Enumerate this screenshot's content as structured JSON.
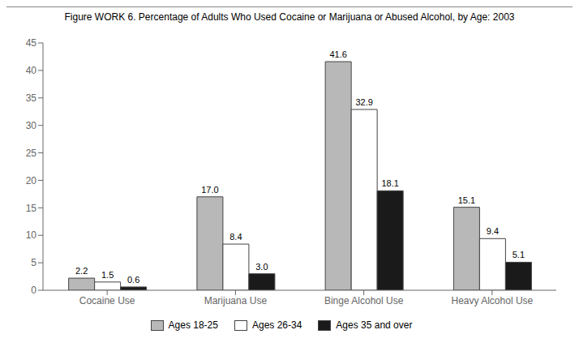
{
  "chart_data": {
    "type": "bar",
    "title": "Figure WORK 6. Percentage of Adults Who Used Cocaine or Marijuana or Abused Alcohol, by Age: 2003",
    "categories": [
      "Cocaine Use",
      "Marijuana Use",
      "Binge Alcohol Use",
      "Heavy Alcohol Use"
    ],
    "series": [
      {
        "name": "Ages 18-25",
        "color": "#b8b8b8",
        "values": [
          2.2,
          17.0,
          41.6,
          15.1
        ],
        "value_labels": [
          "2.2",
          "17.0",
          "41.6",
          "15.1"
        ]
      },
      {
        "name": "Ages 26-34",
        "color": "#ffffff",
        "values": [
          1.5,
          8.4,
          32.9,
          9.4
        ],
        "value_labels": [
          "1.5",
          "8.4",
          "32.9",
          "9.4"
        ]
      },
      {
        "name": "Ages 35 and over",
        "color": "#1a1a1a",
        "values": [
          0.6,
          3.0,
          18.1,
          5.1
        ],
        "value_labels": [
          "0.6",
          "3.0",
          "18.1",
          "5.1"
        ]
      }
    ],
    "ylim": [
      0,
      45
    ],
    "yticks": [
      0,
      5,
      10,
      15,
      20,
      25,
      30,
      35,
      40,
      45
    ],
    "grid": false,
    "legend": "bottom",
    "data_labels": true
  }
}
